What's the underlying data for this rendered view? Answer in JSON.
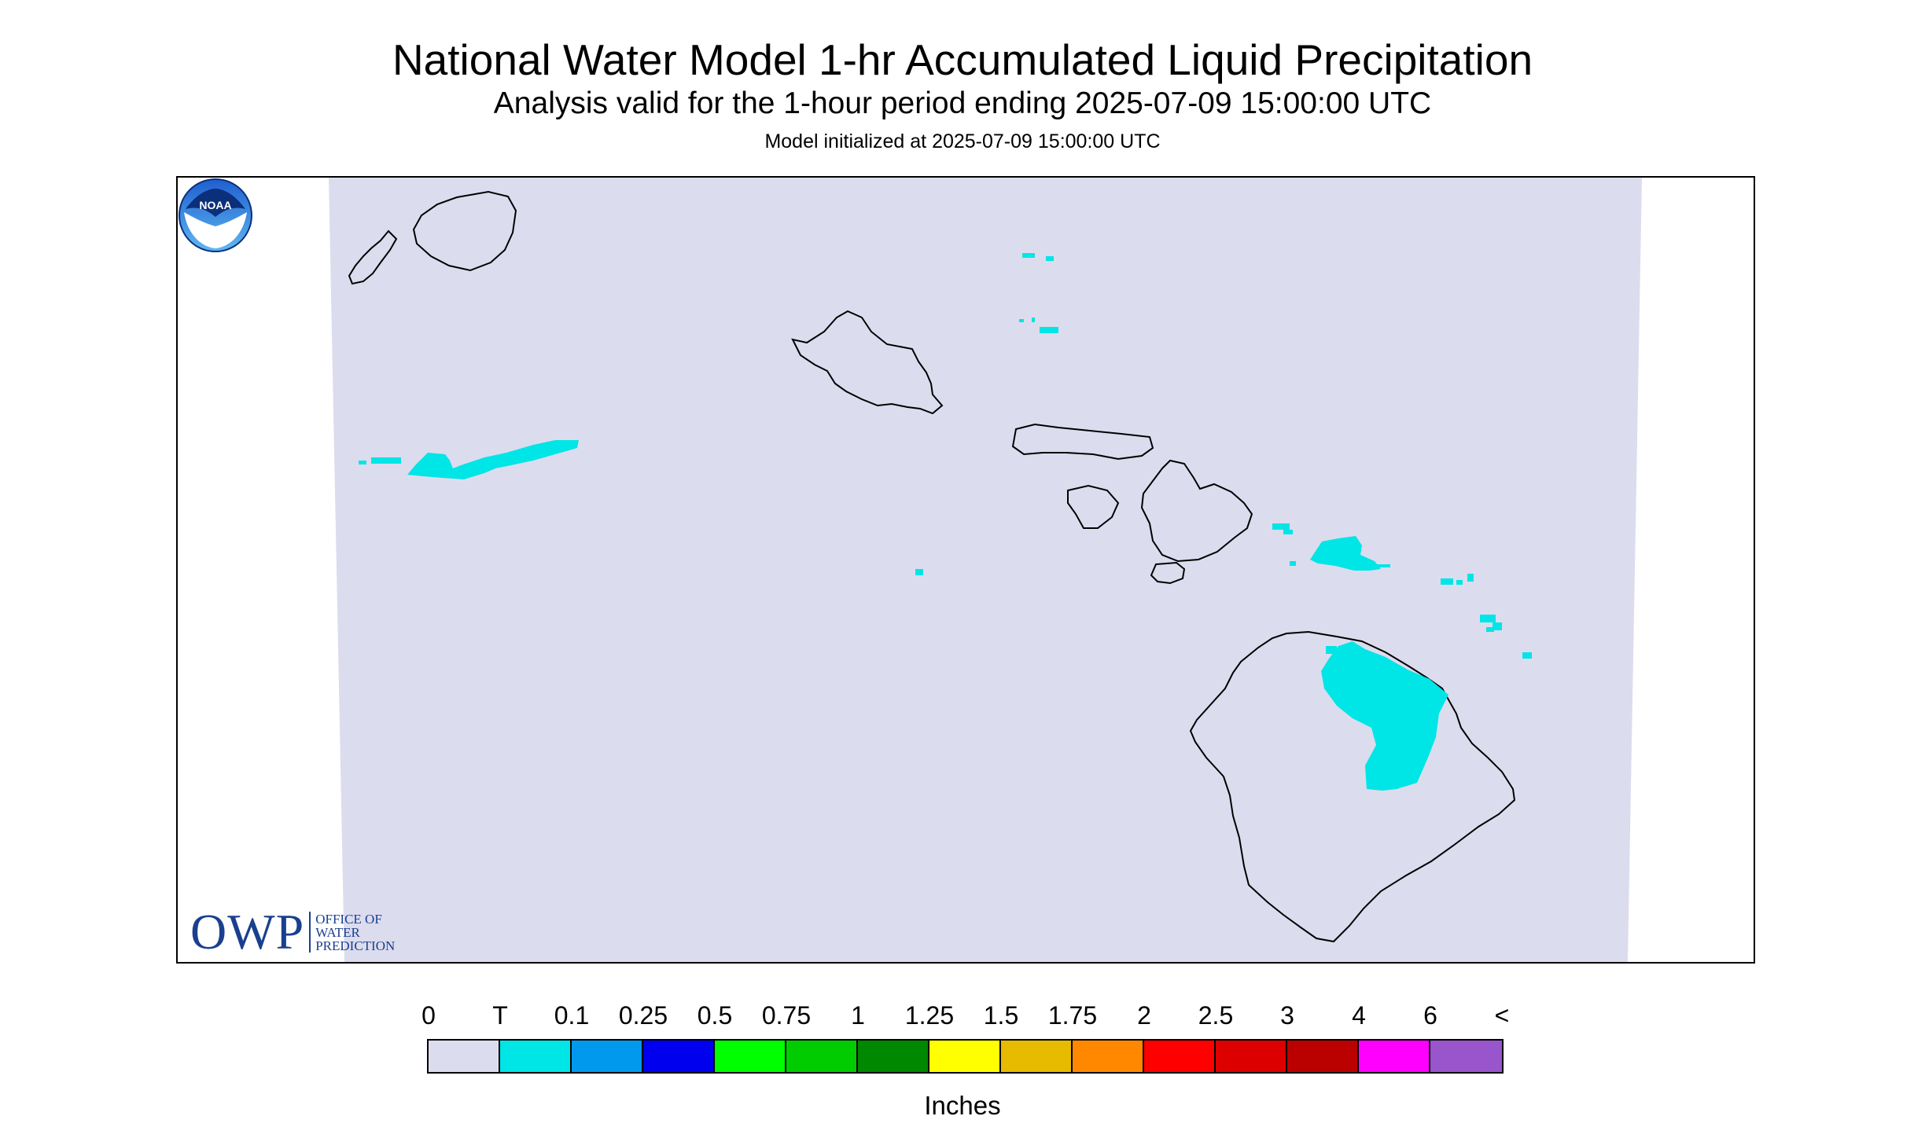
{
  "title": "National Water Model 1-hr Accumulated Liquid Precipitation",
  "subtitle": "Analysis valid for the 1-hour period ending 2025-07-09 15:00:00 UTC",
  "init_line": "Model initialized at 2025-07-09 15:00:00 UTC",
  "map": {
    "background_color": "#dcdcef",
    "precip_color": "#00e5e5",
    "coastline_color": "#000000"
  },
  "logos": {
    "owp_big": "OWP",
    "owp_lines": [
      "OFFICE OF",
      "WATER",
      "PREDICTION"
    ],
    "noaa": "NOAA"
  },
  "legend": {
    "ticks": [
      "0",
      "T",
      "0.1",
      "0.25",
      "0.5",
      "0.75",
      "1",
      "1.25",
      "1.5",
      "1.75",
      "2",
      "2.5",
      "3",
      "4",
      "6",
      "<"
    ],
    "colors": [
      "#dcdcef",
      "#00e5e5",
      "#0099ee",
      "#0000ee",
      "#00ff00",
      "#00cc00",
      "#008800",
      "#ffff00",
      "#e6bb00",
      "#ff8800",
      "#ff0000",
      "#dd0000",
      "#bb0000",
      "#ff00ff",
      "#9955cc"
    ],
    "units": "Inches"
  }
}
